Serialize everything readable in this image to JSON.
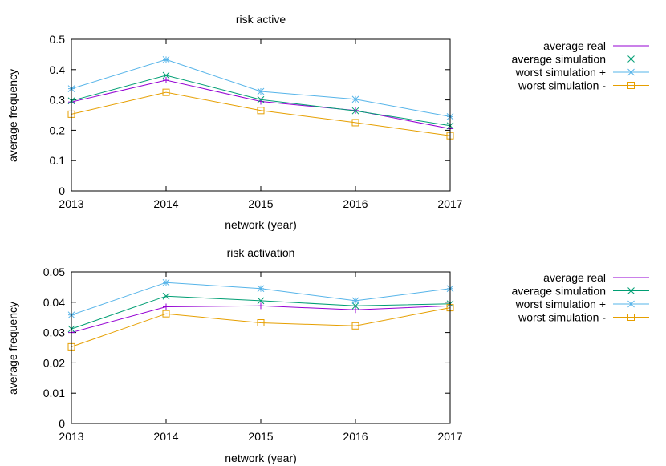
{
  "chart_data": [
    {
      "type": "line",
      "title": "risk active",
      "xlabel": "network (year)",
      "ylabel": "average frequency",
      "x": [
        2013,
        2014,
        2015,
        2016,
        2017
      ],
      "xlim": [
        2013,
        2017
      ],
      "ylim": [
        0,
        0.5
      ],
      "yticks": [
        "0",
        "0.1",
        "0.2",
        "0.3",
        "0.4",
        "0.5"
      ],
      "xticks": [
        "2013",
        "2014",
        "2015",
        "2016",
        "2017"
      ],
      "grid": false,
      "legend": "right",
      "series": [
        {
          "name": "average real",
          "color": "#9400d3",
          "marker": "plus",
          "values": [
            0.293,
            0.365,
            0.295,
            0.265,
            0.205
          ]
        },
        {
          "name": "average simulation",
          "color": "#009e73",
          "marker": "cross",
          "values": [
            0.297,
            0.381,
            0.301,
            0.264,
            0.215
          ]
        },
        {
          "name": "worst simulation +",
          "color": "#56b4e9",
          "marker": "star",
          "values": [
            0.337,
            0.433,
            0.328,
            0.302,
            0.245
          ]
        },
        {
          "name": "worst simulation -",
          "color": "#e69f00",
          "marker": "square",
          "values": [
            0.253,
            0.325,
            0.265,
            0.225,
            0.182
          ]
        }
      ]
    },
    {
      "type": "line",
      "title": "risk activation",
      "xlabel": "network (year)",
      "ylabel": "average frequency",
      "x": [
        2013,
        2014,
        2015,
        2016,
        2017
      ],
      "xlim": [
        2013,
        2017
      ],
      "ylim": [
        0,
        0.05
      ],
      "yticks": [
        "0",
        "0.01",
        "0.02",
        "0.03",
        "0.04",
        "0.05"
      ],
      "xticks": [
        "2013",
        "2014",
        "2015",
        "2016",
        "2017"
      ],
      "grid": false,
      "legend": "right",
      "series": [
        {
          "name": "average real",
          "color": "#9400d3",
          "marker": "plus",
          "values": [
            0.03,
            0.0385,
            0.0388,
            0.0375,
            0.0388
          ]
        },
        {
          "name": "average simulation",
          "color": "#009e73",
          "marker": "cross",
          "values": [
            0.0312,
            0.042,
            0.0405,
            0.0388,
            0.0395
          ]
        },
        {
          "name": "worst simulation +",
          "color": "#56b4e9",
          "marker": "star",
          "values": [
            0.0358,
            0.0465,
            0.0445,
            0.0405,
            0.0445
          ]
        },
        {
          "name": "worst simulation -",
          "color": "#e69f00",
          "marker": "square",
          "values": [
            0.0253,
            0.0362,
            0.0332,
            0.0322,
            0.0382
          ]
        }
      ]
    }
  ]
}
